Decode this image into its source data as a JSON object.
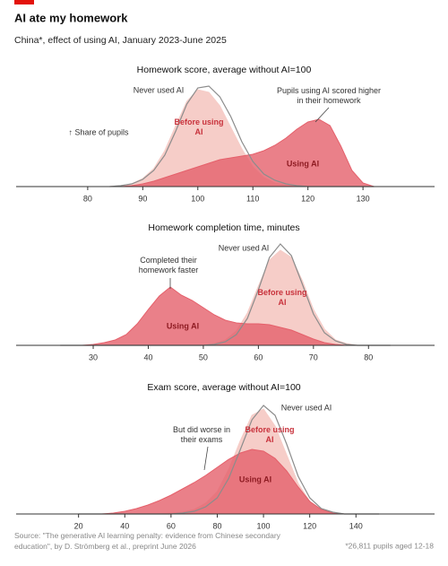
{
  "header": {
    "title": "AI ate my homework",
    "subtitle": "China*, effect of using AI, January 2023-June 2025"
  },
  "chart_data": [
    {
      "type": "density",
      "title": "Homework score, average without AI=100",
      "x": [
        84,
        86,
        88,
        90,
        92,
        94,
        96,
        98,
        100,
        102,
        104,
        106,
        108,
        110,
        112,
        114,
        116,
        118,
        120,
        122,
        124,
        126,
        128,
        130,
        132
      ],
      "xlim": [
        67,
        143
      ],
      "xticks": [
        80,
        90,
        100,
        110,
        120,
        130
      ],
      "series": [
        {
          "name": "Before using AI",
          "color": "#f6cdc8",
          "kind": "area",
          "values": [
            0,
            1,
            3,
            9,
            20,
            40,
            68,
            95,
            108,
            105,
            90,
            66,
            42,
            22,
            10,
            4,
            2,
            1,
            0,
            0,
            0,
            0,
            0,
            0,
            0
          ]
        },
        {
          "name": "Using AI",
          "color": "#e5606b",
          "kind": "area",
          "values": [
            0,
            0,
            1,
            3,
            6,
            10,
            14,
            18,
            22,
            26,
            30,
            32,
            34,
            36,
            40,
            46,
            54,
            64,
            72,
            75,
            68,
            45,
            18,
            4,
            0
          ]
        },
        {
          "name": "Never used AI",
          "color": "#8c8c8c",
          "kind": "line",
          "values": [
            0,
            1,
            3,
            8,
            18,
            35,
            62,
            92,
            110,
            112,
            100,
            78,
            50,
            28,
            14,
            7,
            3,
            1,
            0,
            0,
            0,
            0,
            0,
            0,
            0
          ]
        }
      ],
      "annotations": [
        "Pupils using AI scored higher in their homework",
        "↑ Share of pupils"
      ]
    },
    {
      "type": "density",
      "title": "Homework completion time, minutes",
      "x": [
        24,
        26,
        28,
        30,
        32,
        34,
        36,
        38,
        40,
        42,
        44,
        46,
        48,
        50,
        52,
        54,
        56,
        58,
        60,
        62,
        64,
        66,
        68,
        70,
        72,
        74,
        76,
        78,
        80,
        82,
        84
      ],
      "xlim": [
        16,
        92
      ],
      "xticks": [
        30,
        40,
        50,
        60,
        70,
        80
      ],
      "series": [
        {
          "name": "Before using AI",
          "color": "#f6cdc8",
          "kind": "area",
          "values": [
            0,
            0,
            0,
            0,
            0,
            0,
            0,
            0,
            0,
            0,
            0,
            0,
            0,
            0,
            2,
            6,
            16,
            36,
            66,
            95,
            106,
            98,
            72,
            40,
            18,
            6,
            2,
            0,
            0,
            0,
            0
          ]
        },
        {
          "name": "Using AI",
          "color": "#e5606b",
          "kind": "area",
          "values": [
            0,
            0,
            0,
            1,
            3,
            6,
            12,
            24,
            40,
            55,
            65,
            56,
            50,
            42,
            34,
            28,
            25,
            24,
            24,
            23,
            20,
            17,
            12,
            7,
            3,
            1,
            0,
            0,
            0,
            0,
            0
          ]
        },
        {
          "name": "Never used AI",
          "color": "#8c8c8c",
          "kind": "line",
          "values": [
            0,
            0,
            0,
            0,
            0,
            0,
            0,
            0,
            0,
            0,
            0,
            0,
            0,
            0,
            1,
            4,
            12,
            30,
            62,
            98,
            113,
            100,
            68,
            35,
            14,
            5,
            1,
            0,
            0,
            0,
            0
          ]
        }
      ],
      "annotations": [
        "Completed their homework faster"
      ]
    },
    {
      "type": "density",
      "title": "Exam score, average without AI=100",
      "x": [
        20,
        25,
        30,
        35,
        40,
        45,
        50,
        55,
        60,
        65,
        70,
        75,
        80,
        85,
        90,
        95,
        100,
        105,
        110,
        115,
        120,
        125,
        130,
        135,
        140,
        145,
        150
      ],
      "xlim": [
        -7,
        174
      ],
      "xticks": [
        20,
        40,
        60,
        80,
        100,
        120,
        140
      ],
      "series": [
        {
          "name": "Before using AI",
          "color": "#f6cdc8",
          "kind": "area",
          "values": [
            0,
            0,
            0,
            0,
            0,
            0,
            0,
            0,
            1,
            2,
            5,
            12,
            25,
            50,
            82,
            110,
            117,
            98,
            66,
            34,
            14,
            5,
            1,
            0,
            0,
            0,
            0
          ]
        },
        {
          "name": "Using AI",
          "color": "#e5606b",
          "kind": "area",
          "values": [
            0,
            0,
            0,
            1,
            3,
            6,
            10,
            15,
            21,
            28,
            35,
            43,
            52,
            61,
            68,
            72,
            70,
            62,
            48,
            30,
            14,
            5,
            1,
            0,
            0,
            0,
            0
          ]
        },
        {
          "name": "Never used AI",
          "color": "#8c8c8c",
          "kind": "line",
          "values": [
            0,
            0,
            0,
            0,
            0,
            0,
            0,
            0,
            0,
            1,
            3,
            8,
            18,
            40,
            72,
            105,
            121,
            110,
            78,
            42,
            18,
            6,
            2,
            0,
            0,
            0,
            0
          ]
        }
      ],
      "annotations": [
        "But did worse in their exams"
      ]
    }
  ],
  "footer": {
    "source": "Source: \"The generative AI learning penalty: evidence from Chinese secondary education\", by D. Strömberg et al., preprint June 2026",
    "note": "*26,811 pupils aged 12-18"
  }
}
